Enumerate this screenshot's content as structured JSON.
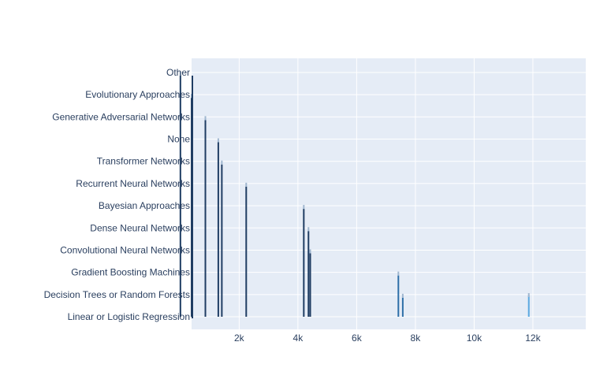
{
  "chart_data": {
    "type": "bar",
    "orientation": "vertical-lines",
    "title": "",
    "xlabel": "",
    "ylabel": "",
    "categories": [
      "Linear or Logistic Regression",
      "Decision Trees or Random Forests",
      "Gradient Boosting Machines",
      "Convolutional Neural Networks",
      "Dense Neural Networks",
      "Bayesian Approaches",
      "Recurrent Neural Networks",
      "Transformer Networks",
      "None",
      "Generative Adversarial Networks",
      "Evolutionary Approaches",
      "Other"
    ],
    "values": [
      11860,
      7570,
      7420,
      4420,
      4360,
      4200,
      2240,
      1410,
      1290,
      850,
      380,
      0
    ],
    "xlim": [
      380,
      13800
    ],
    "x_ticks": [
      {
        "value": 2000,
        "label": "2k"
      },
      {
        "value": 4000,
        "label": "4k"
      },
      {
        "value": 6000,
        "label": "6k"
      },
      {
        "value": 8000,
        "label": "8k"
      },
      {
        "value": 10000,
        "label": "10k"
      },
      {
        "value": 12000,
        "label": "12k"
      }
    ],
    "grid": true,
    "legend": "none",
    "colors": {
      "plot_bg": "#e5ecf6",
      "grid": "#ffffff",
      "line_dark": "#1f3d63",
      "line_mid": "#2e6fa8",
      "line_light": "#5aa8e0",
      "tick_text": "#2a3f5f"
    }
  }
}
